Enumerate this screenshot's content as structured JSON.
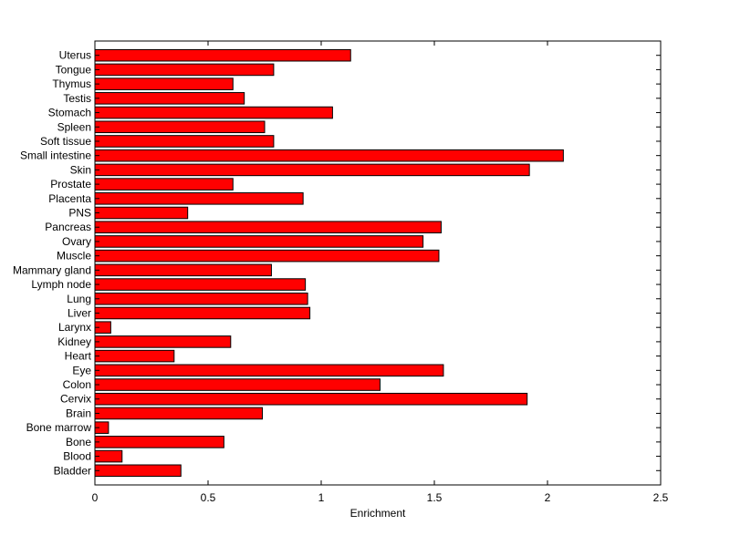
{
  "chart_data": {
    "type": "bar",
    "orientation": "horizontal",
    "title": "",
    "xlabel": "Enrichment",
    "ylabel": "",
    "xlim": [
      0,
      2.5
    ],
    "xticks": [
      "0",
      "0.5",
      "1",
      "1.5",
      "2",
      "2.5"
    ],
    "grid": false,
    "bar_color": "#ff0000",
    "edge_color": "#000000",
    "categories": [
      "Bladder",
      "Blood",
      "Bone",
      "Bone marrow",
      "Brain",
      "Cervix",
      "Colon",
      "Eye",
      "Heart",
      "Kidney",
      "Larynx",
      "Liver",
      "Lung",
      "Lymph node",
      "Mammary gland",
      "Muscle",
      "Ovary",
      "Pancreas",
      "PNS",
      "Placenta",
      "Prostate",
      "Skin",
      "Small intestine",
      "Soft tissue",
      "Spleen",
      "Stomach",
      "Testis",
      "Thymus",
      "Tongue",
      "Uterus"
    ],
    "values": [
      0.38,
      0.12,
      0.57,
      0.06,
      0.74,
      1.91,
      1.26,
      1.54,
      0.35,
      0.6,
      0.07,
      0.95,
      0.94,
      0.93,
      0.78,
      1.52,
      1.45,
      1.53,
      0.41,
      0.92,
      0.61,
      1.92,
      2.07,
      0.79,
      0.75,
      1.05,
      0.66,
      0.61,
      0.79,
      1.13
    ]
  }
}
